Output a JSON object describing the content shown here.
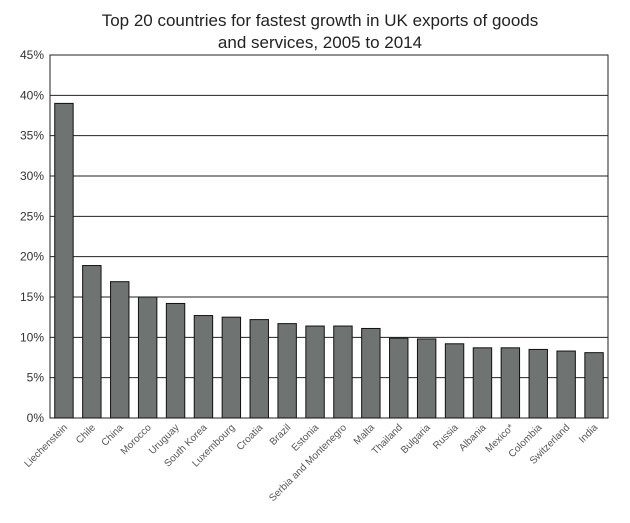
{
  "chart_data": {
    "type": "bar",
    "title_line1": "Top 20 countries for fastest growth in UK exports of goods",
    "title_line2": "and services, 2005 to 2014",
    "xlabel": "",
    "ylabel": "",
    "ylim": [
      0,
      45
    ],
    "ytick_values": [
      0,
      5,
      10,
      15,
      20,
      25,
      30,
      35,
      40,
      45
    ],
    "ytick_labels": [
      "0%",
      "5%",
      "10%",
      "15%",
      "20%",
      "25%",
      "30%",
      "35%",
      "40%",
      "45%"
    ],
    "grid": "horizontal",
    "bar_color": "#6f7372",
    "categories": [
      "Liechenstein",
      "Chile",
      "China",
      "Morocco",
      "Uruguay",
      "South Korea",
      "Luxembourg",
      "Croatia",
      "Brazil",
      "Estonia",
      "Serbia and Montenegro",
      "Malta",
      "Thailand",
      "Bulgaria",
      "Russia",
      "Albania",
      "Mexico*",
      "Colombia",
      "Switzerland",
      "India"
    ],
    "values": [
      39.0,
      18.9,
      16.9,
      15.0,
      14.2,
      12.7,
      12.5,
      12.2,
      11.7,
      11.4,
      11.4,
      11.1,
      9.9,
      9.8,
      9.2,
      8.7,
      8.7,
      8.5,
      8.3,
      8.1
    ]
  }
}
